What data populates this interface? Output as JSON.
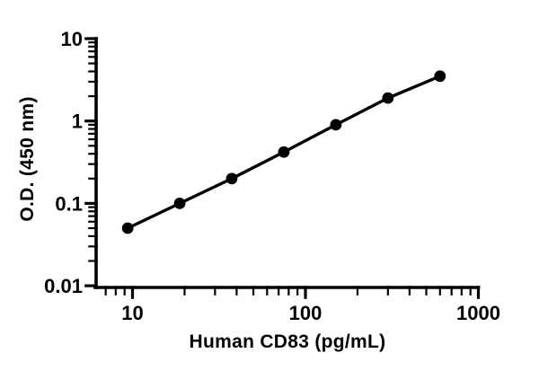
{
  "colors": {
    "ink": "#000000",
    "background": "#ffffff"
  },
  "chart_data": {
    "type": "line",
    "title": "",
    "xlabel": "Human CD83 (pg/mL)",
    "ylabel": "O.D. (450 nm)",
    "x_scale": "log",
    "y_scale": "log",
    "xlim": [
      6.1,
      1000
    ],
    "ylim": [
      0.01,
      10
    ],
    "grid": false,
    "legend": "none",
    "x_major_ticks": {
      "values": [
        10,
        100,
        1000
      ],
      "labels": [
        "10",
        "100",
        "1000"
      ]
    },
    "y_major_ticks": {
      "values": [
        10,
        1,
        0.1,
        0.01
      ],
      "labels": [
        "10",
        "1",
        "0.1",
        "0.01"
      ]
    },
    "series": [
      {
        "x": [
          9.38,
          18.75,
          37.5,
          75,
          150,
          300,
          600
        ],
        "y": [
          0.05,
          0.1,
          0.2,
          0.42,
          0.9,
          1.9,
          3.5
        ],
        "marker": "filled-circle",
        "line": "solid",
        "color": "#000000"
      }
    ]
  }
}
